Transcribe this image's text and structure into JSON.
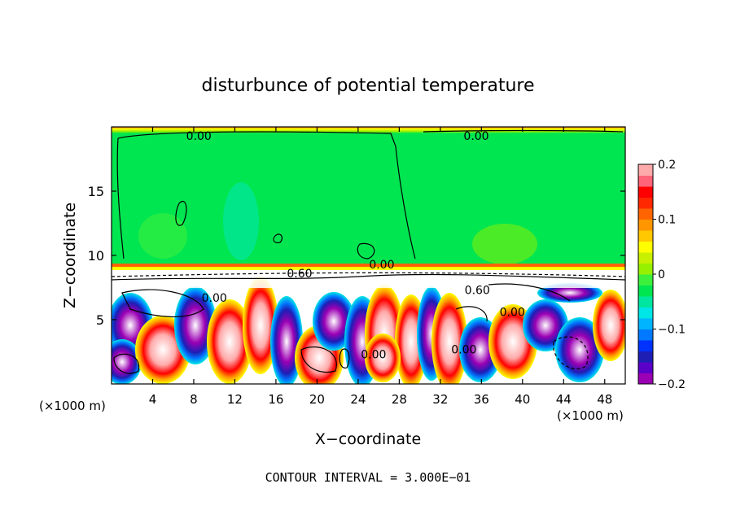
{
  "chart_data": {
    "type": "heatmap",
    "title": "disturbunce of potential temperature",
    "xlabel": "X−coordinate",
    "ylabel": "Z−coordinate",
    "xunit": "(×1000 m)",
    "xunit_right": "(×1000 m)",
    "xlim": [
      0,
      50
    ],
    "ylim": [
      0,
      20
    ],
    "xticks": [
      4,
      8,
      12,
      16,
      20,
      24,
      28,
      32,
      36,
      40,
      44,
      48
    ],
    "yticks": [
      5,
      10,
      15
    ],
    "colorbar": {
      "range": [
        -0.2,
        0.2
      ],
      "ticks": [
        {
          "value": 0.2,
          "label": "0.2"
        },
        {
          "value": 0.1,
          "label": "0.1"
        },
        {
          "value": 0,
          "label": "0"
        },
        {
          "value": -0.1,
          "label": "−0.1"
        },
        {
          "value": -0.2,
          "label": "−0.2"
        }
      ],
      "colors": [
        "#9b00b4",
        "#5a00c8",
        "#1e1eb4",
        "#0032ff",
        "#0078ff",
        "#00b4ff",
        "#00e6e6",
        "#00e6a0",
        "#00e650",
        "#3cf03c",
        "#96f000",
        "#c8f000",
        "#ffff00",
        "#ffc800",
        "#ff9600",
        "#ff6400",
        "#ff2800",
        "#ff0000",
        "#ff6478",
        "#ffaaaa"
      ]
    },
    "contour_labels": [
      {
        "x": 8.5,
        "z": 19.3,
        "text": "0.00"
      },
      {
        "x": 35.5,
        "z": 19.3,
        "text": "0.00"
      },
      {
        "x": 26.3,
        "z": 9.3,
        "text": "0.00"
      },
      {
        "x": 18.3,
        "z": 8.6,
        "text": "0.60"
      },
      {
        "x": 35.6,
        "z": 7.3,
        "text": "0.60"
      },
      {
        "x": 10.0,
        "z": 6.7,
        "text": "0.00"
      },
      {
        "x": 39.0,
        "z": 5.6,
        "text": "0.00"
      },
      {
        "x": 25.5,
        "z": 2.3,
        "text": "0.00"
      },
      {
        "x": 34.3,
        "z": 2.7,
        "text": "0.00"
      }
    ],
    "annotation": "CONTOUR INTERVAL = 3.000E−01"
  }
}
